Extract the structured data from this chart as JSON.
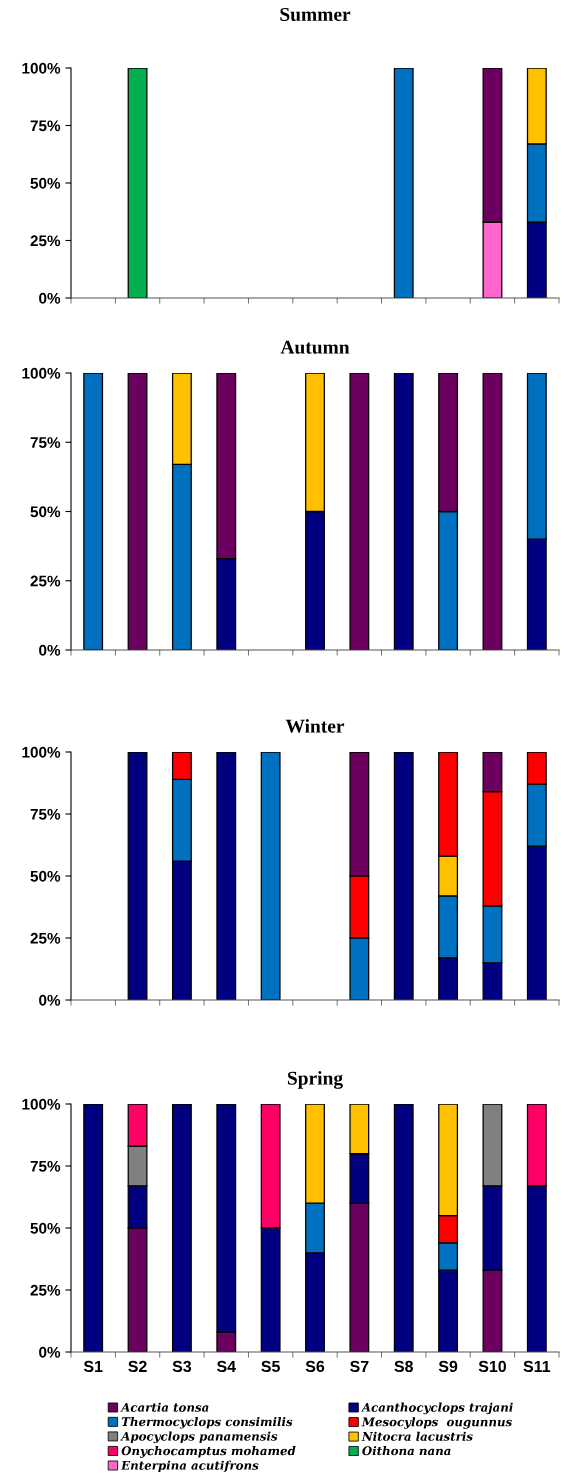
{
  "chart_data": [
    {
      "type": "bar",
      "stacked": true,
      "title": "Summer",
      "categories": [
        null,
        null,
        null,
        null,
        null,
        null,
        null,
        null,
        null,
        null,
        null
      ],
      "ylim": [
        0,
        100
      ],
      "yticks": [
        {
          "value": 0,
          "label": "0%"
        },
        {
          "value": 25,
          "label": "25%"
        },
        {
          "value": 50,
          "label": "50%"
        },
        {
          "value": 75,
          "label": "75%"
        },
        {
          "value": 100,
          "label": "100%"
        }
      ],
      "tick_labels": "y",
      "series": [
        {
          "color": "#ff66cc",
          "values": [
            null,
            null,
            null,
            null,
            null,
            null,
            null,
            null,
            null,
            33,
            null
          ]
        },
        {
          "color": "#000080",
          "values": [
            null,
            null,
            null,
            null,
            null,
            null,
            null,
            null,
            null,
            null,
            33
          ]
        },
        {
          "color": "#0070c0",
          "values": [
            null,
            null,
            null,
            null,
            null,
            null,
            null,
            100,
            null,
            null,
            34
          ]
        },
        {
          "color": "#ffc000",
          "values": [
            null,
            null,
            null,
            null,
            null,
            null,
            null,
            null,
            null,
            null,
            33
          ]
        },
        {
          "color": "#6b005e",
          "values": [
            null,
            null,
            null,
            null,
            null,
            null,
            null,
            null,
            null,
            67,
            null
          ]
        },
        {
          "color": "#00b050",
          "values": [
            null,
            100,
            null,
            null,
            null,
            null,
            null,
            null,
            null,
            null,
            null
          ]
        }
      ]
    },
    {
      "type": "bar",
      "stacked": true,
      "title": "Autumn",
      "categories": [
        null,
        null,
        null,
        null,
        null,
        null,
        null,
        null,
        null,
        null,
        null
      ],
      "ylim": [
        0,
        100
      ],
      "yticks": [
        {
          "value": 0,
          "label": "0%"
        },
        {
          "value": 25,
          "label": "25%"
        },
        {
          "value": 50,
          "label": "50%"
        },
        {
          "value": 75,
          "label": "75%"
        },
        {
          "value": 100,
          "label": "100%"
        }
      ],
      "tick_labels": "y",
      "series": [
        {
          "color": "#000080",
          "values": [
            null,
            null,
            null,
            33,
            null,
            50,
            null,
            100,
            null,
            null,
            40
          ]
        },
        {
          "color": "#0070c0",
          "values": [
            100,
            null,
            67,
            null,
            null,
            null,
            null,
            null,
            50,
            null,
            60
          ]
        },
        {
          "color": "#ffc000",
          "values": [
            null,
            null,
            33,
            null,
            null,
            50,
            null,
            null,
            null,
            null,
            null
          ]
        },
        {
          "color": "#6b005e",
          "values": [
            null,
            100,
            null,
            67,
            null,
            null,
            100,
            null,
            50,
            100,
            null
          ]
        }
      ]
    },
    {
      "type": "bar",
      "stacked": true,
      "title": "Winter",
      "categories": [
        null,
        null,
        null,
        null,
        null,
        null,
        null,
        null,
        null,
        null,
        null
      ],
      "ylim": [
        0,
        100
      ],
      "yticks": [
        {
          "value": 0,
          "label": "0%"
        },
        {
          "value": 25,
          "label": "25%"
        },
        {
          "value": 50,
          "label": "50%"
        },
        {
          "value": 75,
          "label": "75%"
        },
        {
          "value": 100,
          "label": "100%"
        }
      ],
      "tick_labels": "y",
      "series": [
        {
          "color": "#000080",
          "values": [
            null,
            100,
            56,
            100,
            null,
            null,
            null,
            100,
            17,
            15,
            62
          ]
        },
        {
          "color": "#0070c0",
          "values": [
            null,
            null,
            33,
            null,
            100,
            null,
            25,
            null,
            25,
            23,
            25
          ]
        },
        {
          "color": "#ffc000",
          "values": [
            null,
            null,
            null,
            null,
            null,
            null,
            null,
            null,
            16,
            null,
            null
          ]
        },
        {
          "color": "#ff0000",
          "values": [
            null,
            null,
            11,
            null,
            null,
            null,
            25,
            null,
            42,
            46,
            13
          ]
        },
        {
          "color": "#6b005e",
          "values": [
            null,
            null,
            null,
            null,
            null,
            null,
            50,
            null,
            null,
            16,
            null
          ]
        }
      ]
    },
    {
      "type": "bar",
      "stacked": true,
      "title": "Spring",
      "categories": [
        "S1",
        "S2",
        "S3",
        "S4",
        "S5",
        "S6",
        "S7",
        "S8",
        "S9",
        "S10",
        "S11"
      ],
      "ylim": [
        0,
        100
      ],
      "yticks": [
        {
          "value": 0,
          "label": "0%"
        },
        {
          "value": 25,
          "label": "25%"
        },
        {
          "value": 50,
          "label": "50%"
        },
        {
          "value": 75,
          "label": "75%"
        },
        {
          "value": 100,
          "label": "100%"
        }
      ],
      "legend": "bottom",
      "series": [
        {
          "name": "Acartia tonsa",
          "color": "#6b005e",
          "values": [
            null,
            50,
            null,
            8,
            null,
            null,
            60,
            null,
            null,
            33,
            null
          ]
        },
        {
          "name": "Acanthocyclops trajani",
          "color": "#000080",
          "values": [
            100,
            17,
            100,
            92,
            50,
            40,
            20,
            100,
            33,
            34,
            67
          ]
        },
        {
          "name": "Thermocyclops consimilis",
          "color": "#0070c0",
          "values": [
            null,
            null,
            null,
            null,
            null,
            20,
            null,
            null,
            11,
            null,
            null
          ]
        },
        {
          "name": "Mesocylops  ougunnus",
          "color": "#ff0000",
          "values": [
            null,
            null,
            null,
            null,
            null,
            null,
            null,
            null,
            11,
            null,
            null
          ]
        },
        {
          "name": "Apocyclops panamensis",
          "color": "#808080",
          "values": [
            null,
            16,
            null,
            null,
            null,
            null,
            null,
            null,
            null,
            33,
            null
          ]
        },
        {
          "name": "Nitocra lacustris",
          "color": "#ffc000",
          "values": [
            null,
            null,
            null,
            null,
            null,
            40,
            20,
            null,
            45,
            null,
            null
          ]
        },
        {
          "name": "Onychocamptus mohamed",
          "color": "#ff0066",
          "values": [
            null,
            17,
            null,
            null,
            50,
            null,
            null,
            null,
            null,
            null,
            33
          ]
        },
        {
          "name": "Oithona nana",
          "color": "#00b050",
          "values": [
            null,
            null,
            null,
            null,
            null,
            null,
            null,
            null,
            null,
            null,
            null
          ]
        },
        {
          "name": "Enterpina acutifrons",
          "color": "#ff66cc",
          "values": [
            null,
            null,
            null,
            null,
            null,
            null,
            null,
            null,
            null,
            null,
            null
          ]
        }
      ]
    }
  ]
}
